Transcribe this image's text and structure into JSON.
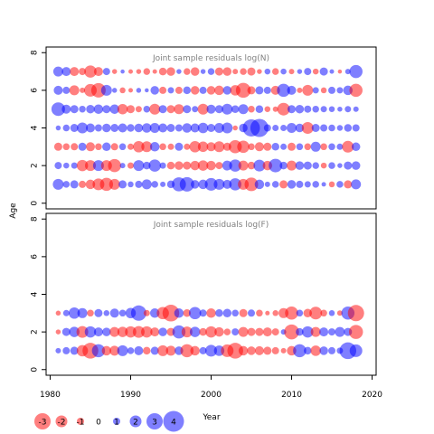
{
  "colors": {
    "negative": "#ff0000",
    "positive": "#0000ff",
    "title": "#808080"
  },
  "ylabel": "Age",
  "xlabel": "Year",
  "chart_data": [
    {
      "type": "scatter",
      "title": "Joint sample residuals log(N)",
      "xlim": [
        1979.5,
        2020.5
      ],
      "ylim": [
        -0.3,
        8.3
      ],
      "y_ticks": [
        "0",
        "2",
        "4",
        "6",
        "8"
      ],
      "y_tick_values": [
        0,
        2,
        4,
        6,
        8
      ],
      "ages": [
        1,
        2,
        3,
        4,
        5,
        6,
        7
      ],
      "years": [
        1981,
        1982,
        1983,
        1984,
        1985,
        1986,
        1987,
        1988,
        1989,
        1990,
        1991,
        1992,
        1993,
        1994,
        1995,
        1996,
        1997,
        1998,
        1999,
        2000,
        2001,
        2002,
        2003,
        2004,
        2005,
        2006,
        2007,
        2008,
        2009,
        2010,
        2011,
        2012,
        2013,
        2014,
        2015,
        2016,
        2017,
        2018
      ],
      "residuals": [
        [
          1.8,
          0.9,
          1.2,
          -1.0,
          -1.5,
          -2.0,
          -2.3,
          -1.8,
          1.2,
          0.7,
          1.0,
          1.6,
          0.9,
          0.6,
          1.1,
          2.5,
          2.6,
          1.3,
          1.5,
          2.2,
          1.8,
          1.4,
          2.1,
          -1.8,
          -2.4,
          1.5,
          0.6,
          0.9,
          -1.2,
          1.3,
          1.0,
          0.8,
          0.9,
          0.4,
          -0.7,
          0.9,
          -1.2,
          1.6
        ],
        [
          1.0,
          0.7,
          0.8,
          -1.9,
          -1.8,
          1.8,
          -1.8,
          -2.3,
          0.6,
          -0.8,
          1.8,
          1.1,
          2.1,
          0.8,
          -1.1,
          -1.3,
          -1.2,
          -1.5,
          -1.7,
          -1.5,
          -1.0,
          1.6,
          2.1,
          -1.6,
          -1.1,
          2.0,
          -1.5,
          2.4,
          1.1,
          -1.6,
          1.3,
          1.2,
          0.9,
          -0.7,
          0.9,
          0.5,
          1.2,
          1.3
        ],
        [
          -1.2,
          -0.9,
          -1.0,
          1.2,
          -1.4,
          -0.9,
          1.3,
          -1.0,
          0.9,
          -0.8,
          -1.9,
          -1.8,
          1.5,
          -0.9,
          -0.8,
          1.2,
          -0.8,
          -1.9,
          -1.7,
          -1.4,
          -1.8,
          -1.2,
          -2.3,
          -2.1,
          -0.9,
          -1.4,
          -1.2,
          1.1,
          0.8,
          -1.2,
          0.9,
          -0.9,
          1.6,
          -0.9,
          0.9,
          0.8,
          -2.0,
          1.3
        ],
        [
          0.5,
          0.9,
          1.2,
          1.8,
          1.4,
          1.0,
          1.3,
          1.2,
          1.4,
          1.1,
          1.3,
          1.5,
          1.6,
          1.4,
          1.2,
          1.0,
          1.5,
          1.4,
          1.7,
          1.2,
          1.6,
          1.8,
          -0.5,
          1.3,
          3.2,
          3.4,
          1.0,
          0.8,
          0.8,
          1.6,
          1.3,
          -2.0,
          1.2,
          1.0,
          0.9,
          0.7,
          1.1,
          1.0
        ],
        [
          2.4,
          1.4,
          1.2,
          0.9,
          1.3,
          1.5,
          1.2,
          1.5,
          -1.7,
          -1.2,
          -0.8,
          0.9,
          -1.8,
          1.2,
          -1.2,
          -1.6,
          1.2,
          0.8,
          -1.8,
          1.4,
          1.2,
          1.8,
          1.1,
          1.6,
          -0.9,
          1.1,
          -0.7,
          -0.6,
          -2.2,
          1.2,
          1.3,
          1.0,
          0.9,
          0.8,
          0.7,
          0.5,
          0.8,
          0.6
        ],
        [
          1.4,
          1.0,
          -1.6,
          -0.6,
          -2.2,
          -2.6,
          1.8,
          0.5,
          -0.7,
          -0.4,
          0.5,
          0.3,
          1.3,
          -1.0,
          0.8,
          -1.0,
          1.1,
          -1.3,
          1.0,
          -1.3,
          -1.5,
          1.3,
          -1.7,
          -2.7,
          -1.2,
          1.2,
          1.0,
          -1.4,
          2.3,
          1.4,
          -0.6,
          -1.8,
          0.8,
          -0.7,
          1.0,
          0.8,
          1.5,
          -2.3
        ],
        [
          1.6,
          1.4,
          -1.4,
          -1.0,
          -2.1,
          -1.4,
          1.0,
          -0.5,
          0.3,
          -0.4,
          -0.5,
          -0.9,
          -0.4,
          -1.1,
          -1.3,
          0.5,
          -0.9,
          -1.3,
          0.5,
          0.9,
          -1.2,
          -1.3,
          -0.6,
          -0.9,
          -1.2,
          -0.5,
          0.7,
          -0.9,
          0.7,
          -0.6,
          0.5,
          1.0,
          -0.7,
          1.2,
          0.4,
          -0.3,
          0.6,
          2.3
        ]
      ]
    },
    {
      "type": "scatter",
      "title": "Joint sample residuals log(F)",
      "xlim": [
        1979.5,
        2020.5
      ],
      "ylim": [
        -0.3,
        8.3
      ],
      "x_ticks": [
        "1980",
        "1990",
        "2000",
        "2010",
        "2020"
      ],
      "x_tick_values": [
        1980,
        1990,
        2000,
        2010,
        2020
      ],
      "y_ticks": [
        "0",
        "2",
        "4",
        "6",
        "8"
      ],
      "y_tick_values": [
        0,
        2,
        4,
        6,
        8
      ],
      "ages": [
        1,
        2,
        3
      ],
      "years": [
        1981,
        1982,
        1983,
        1984,
        1985,
        1986,
        1987,
        1988,
        1989,
        1990,
        1991,
        1992,
        1993,
        1994,
        1995,
        1996,
        1997,
        1998,
        1999,
        2000,
        2001,
        2002,
        2003,
        2004,
        2005,
        2006,
        2007,
        2008,
        2009,
        2010,
        2011,
        2012,
        2013,
        2014,
        2015,
        2016,
        2017,
        2018
      ],
      "residuals": [
        [
          0.6,
          1.0,
          1.2,
          -1.9,
          -2.9,
          2.3,
          -1.5,
          -1.6,
          1.8,
          0.9,
          1.4,
          -1.1,
          1.2,
          -1.8,
          -1.6,
          1.3,
          -2.3,
          -1.5,
          1.0,
          2.0,
          1.7,
          -2.2,
          -2.9,
          -1.5,
          -1.3,
          -1.4,
          -1.2,
          -1.0,
          -0.6,
          -1.5,
          2.3,
          1.1,
          -1.7,
          1.3,
          1.0,
          0.8,
          3.1,
          2.2
        ],
        [
          -0.5,
          1.2,
          1.7,
          -2.0,
          1.9,
          1.4,
          1.3,
          -1.6,
          -1.7,
          -1.9,
          -2.0,
          -1.9,
          -1.4,
          1.3,
          -1.2,
          2.3,
          -1.8,
          1.7,
          -1.1,
          -1.9,
          -1.5,
          -0.9,
          1.0,
          -1.6,
          -1.2,
          -1.2,
          -1.4,
          -1.0,
          0.6,
          -2.7,
          1.1,
          1.9,
          -1.6,
          1.4,
          1.0,
          1.6,
          1.2,
          -2.5
        ],
        [
          -0.5,
          0.8,
          1.9,
          1.6,
          -0.9,
          1.2,
          0.7,
          1.4,
          0.9,
          1.7,
          2.8,
          -0.8,
          1.5,
          -2.1,
          -3.1,
          1.5,
          -1.1,
          2.1,
          1.0,
          -1.5,
          1.1,
          1.3,
          0.9,
          -1.2,
          1.0,
          -0.9,
          -0.4,
          -0.7,
          -1.6,
          -2.3,
          0.9,
          -1.3,
          -2.2,
          -0.9,
          0.7,
          -0.6,
          2.3,
          -3.0
        ]
      ]
    }
  ],
  "legend": {
    "items": [
      {
        "label": "-3",
        "value": -3
      },
      {
        "label": "-2",
        "value": -2
      },
      {
        "label": "-1",
        "value": -1
      },
      {
        "label": "0",
        "value": 0
      },
      {
        "label": "1",
        "value": 1
      },
      {
        "label": "2",
        "value": 2
      },
      {
        "label": "3",
        "value": 3
      },
      {
        "label": "4",
        "value": 4
      }
    ]
  }
}
